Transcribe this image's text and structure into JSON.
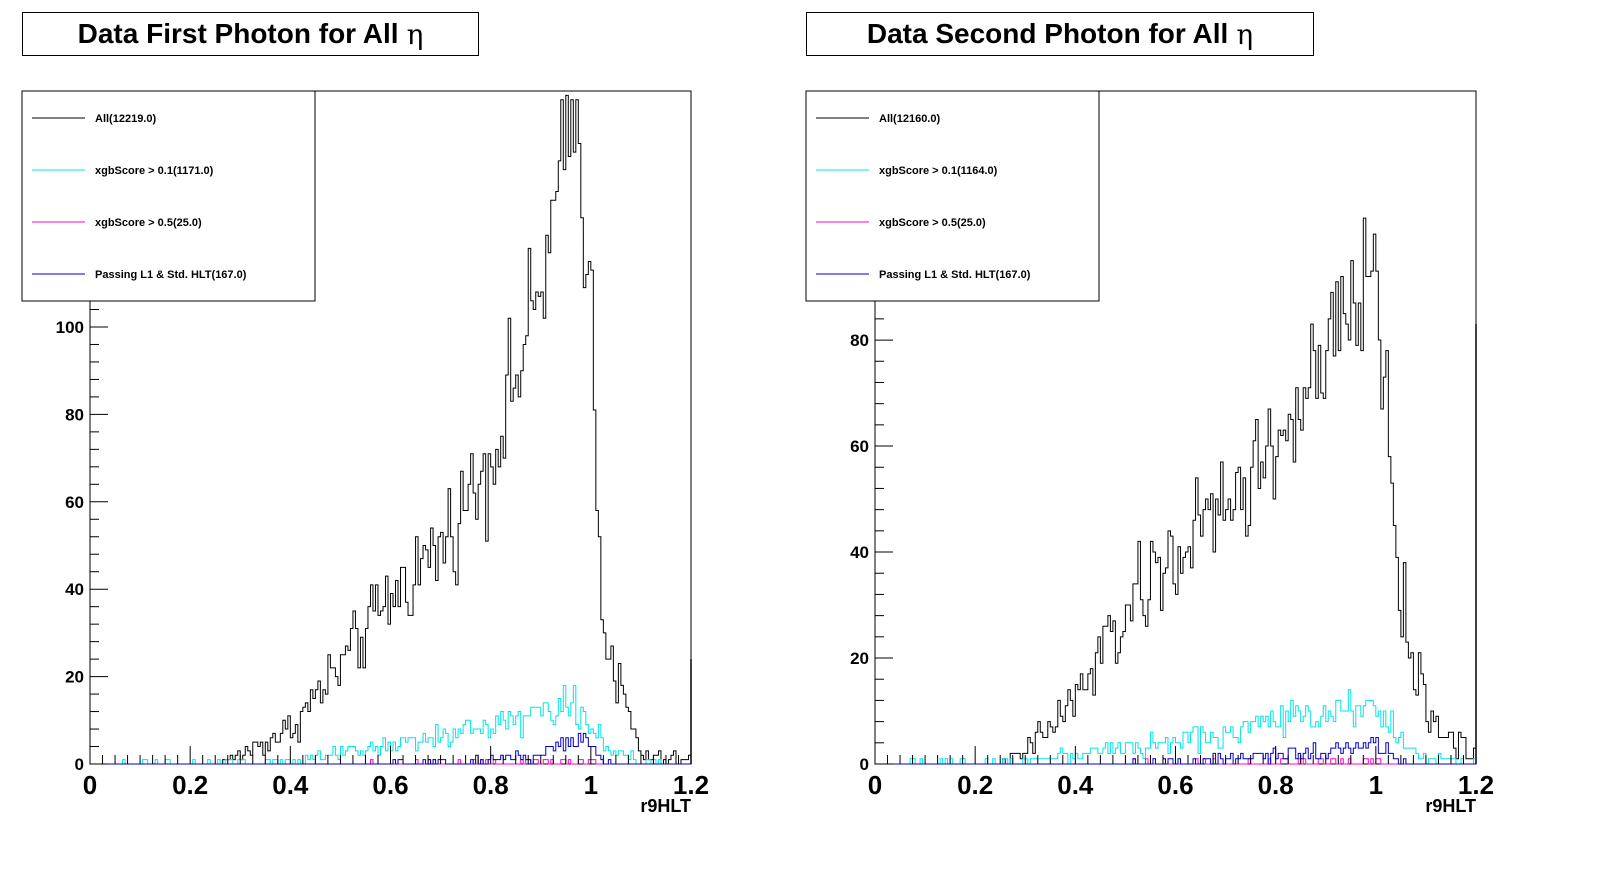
{
  "chart_data": [
    {
      "type": "histogram",
      "title": "Data First Photon for All",
      "title_symbol": "η",
      "xlabel": "r9HLT",
      "xlim": [
        0,
        1.2
      ],
      "ylim": [
        0,
        154
      ],
      "x_ticks": [
        "0",
        "0.2",
        "0.4",
        "0.6",
        "0.8",
        "1",
        "1.2"
      ],
      "y_ticks": [
        "0",
        "20",
        "40",
        "60",
        "80",
        "100"
      ],
      "legend_position": "top-left",
      "series": [
        {
          "name": "All(12219.0)",
          "color": "#000000",
          "profile": [
            [
              0,
              0
            ],
            [
              0.25,
              0
            ],
            [
              0.3,
              2
            ],
            [
              0.4,
              8
            ],
            [
              0.5,
              22
            ],
            [
              0.6,
              38
            ],
            [
              0.7,
              50
            ],
            [
              0.8,
              70
            ],
            [
              0.9,
              108
            ],
            [
              0.97,
              150
            ],
            [
              1.0,
              110
            ],
            [
              1.02,
              40
            ],
            [
              1.05,
              20
            ],
            [
              1.1,
              2
            ],
            [
              1.15,
              1
            ],
            [
              1.2,
              1
            ]
          ],
          "overflow": 24
        },
        {
          "name": "xgbScore > 0.1(1171.0)",
          "color": "#00e5e5",
          "profile": [
            [
              0,
              0
            ],
            [
              0.4,
              0.6
            ],
            [
              0.5,
              2
            ],
            [
              0.6,
              4
            ],
            [
              0.7,
              6
            ],
            [
              0.8,
              9
            ],
            [
              0.9,
              12
            ],
            [
              0.97,
              14
            ],
            [
              1.02,
              6
            ],
            [
              1.05,
              2
            ],
            [
              1.1,
              0.5
            ],
            [
              1.2,
              0
            ]
          ]
        },
        {
          "name": "xgbScore > 0.5(25.0)",
          "color": "#ff00cc",
          "profile": [
            [
              0,
              0
            ],
            [
              0.55,
              0
            ],
            [
              0.6,
              0.3
            ],
            [
              0.8,
              0.3
            ],
            [
              1.0,
              0.5
            ],
            [
              1.05,
              0
            ],
            [
              1.2,
              0
            ]
          ]
        },
        {
          "name": "Passing L1 & Std. HLT(167.0)",
          "color": "#0000cc",
          "profile": [
            [
              0,
              0
            ],
            [
              0.6,
              0
            ],
            [
              0.7,
              0.5
            ],
            [
              0.8,
              1
            ],
            [
              0.9,
              2
            ],
            [
              0.99,
              6
            ],
            [
              1.02,
              1
            ],
            [
              1.05,
              0
            ],
            [
              1.2,
              0
            ]
          ]
        }
      ]
    },
    {
      "type": "histogram",
      "title": "Data Second Photon for All",
      "title_symbol": "η",
      "xlabel": "r9HLT",
      "xlim": [
        0,
        1.2
      ],
      "ylim": [
        0,
        127
      ],
      "x_ticks": [
        "0",
        "0.2",
        "0.4",
        "0.6",
        "0.8",
        "1",
        "1.2"
      ],
      "y_ticks": [
        "0",
        "20",
        "40",
        "60",
        "80"
      ],
      "legend_position": "top-left",
      "series": [
        {
          "name": "All(12160.0)",
          "color": "#000000",
          "profile": [
            [
              0,
              0
            ],
            [
              0.25,
              0
            ],
            [
              0.3,
              2
            ],
            [
              0.4,
              12
            ],
            [
              0.5,
              28
            ],
            [
              0.6,
              40
            ],
            [
              0.7,
              48
            ],
            [
              0.8,
              60
            ],
            [
              0.9,
              75
            ],
            [
              1.0,
              95
            ],
            [
              1.02,
              70
            ],
            [
              1.05,
              30
            ],
            [
              1.1,
              10
            ],
            [
              1.15,
              5
            ],
            [
              1.2,
              2
            ]
          ],
          "overflow": 83
        },
        {
          "name": "xgbScore > 0.1(1164.0)",
          "color": "#00e5e5",
          "profile": [
            [
              0,
              0
            ],
            [
              0.3,
              0.5
            ],
            [
              0.4,
              2
            ],
            [
              0.5,
              3
            ],
            [
              0.6,
              4
            ],
            [
              0.7,
              6
            ],
            [
              0.8,
              8
            ],
            [
              0.9,
              10
            ],
            [
              1.0,
              12
            ],
            [
              1.05,
              4
            ],
            [
              1.1,
              1
            ],
            [
              1.2,
              0
            ]
          ]
        },
        {
          "name": "xgbScore > 0.5(25.0)",
          "color": "#ff00cc",
          "profile": [
            [
              0,
              0
            ],
            [
              0.5,
              0
            ],
            [
              0.55,
              0.3
            ],
            [
              0.8,
              0.3
            ],
            [
              1.0,
              0.5
            ],
            [
              1.05,
              0
            ],
            [
              1.2,
              0
            ]
          ]
        },
        {
          "name": "Passing L1 & Std. HLT(167.0)",
          "color": "#0000cc",
          "profile": [
            [
              0,
              0
            ],
            [
              0.5,
              0
            ],
            [
              0.6,
              0.5
            ],
            [
              0.7,
              1
            ],
            [
              0.8,
              1.5
            ],
            [
              0.9,
              2
            ],
            [
              1.0,
              4
            ],
            [
              1.04,
              0.5
            ],
            [
              1.06,
              0
            ],
            [
              1.2,
              0
            ]
          ]
        }
      ]
    }
  ]
}
